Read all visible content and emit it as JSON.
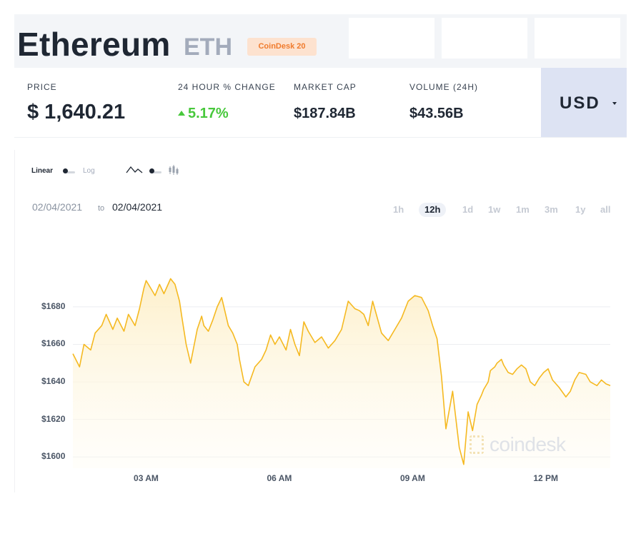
{
  "asset": {
    "name": "Ethereum",
    "symbol": "ETH",
    "badge": "CoinDesk 20"
  },
  "stats": {
    "price": {
      "label": "PRICE",
      "value": "$ 1,640.21"
    },
    "change": {
      "label": "24 HOUR % CHANGE",
      "value": "5.17%",
      "direction": "up"
    },
    "market_cap": {
      "label": "MARKET CAP",
      "value": "$187.84B"
    },
    "volume": {
      "label": "VOLUME (24H)",
      "value": "$43.56B"
    }
  },
  "currency": {
    "selected": "USD"
  },
  "chart_controls": {
    "scale_options": [
      "Linear",
      "Log"
    ],
    "scale_selected": "Linear",
    "chart_type_icons": [
      "line-chart-icon",
      "candlestick-icon"
    ],
    "chart_type_selected": "line",
    "date_from": "02/04/2021",
    "date_to_word": "to",
    "date_to": "02/04/2021",
    "ranges": [
      "1h",
      "12h",
      "1d",
      "1w",
      "1m",
      "3m",
      "1y",
      "all"
    ],
    "range_selected": "12h"
  },
  "watermark": "coindesk",
  "colors": {
    "line": "#f5b921",
    "positive": "#48c83c",
    "badge_text": "#f07b2d",
    "badge_bg": "#fde2cf",
    "currency_bg": "#dde3f3"
  },
  "chart_data": {
    "type": "area",
    "title": "",
    "xlabel": "",
    "ylabel": "",
    "ylim": [
      1594,
      1718
    ],
    "yticks": [
      1600,
      1620,
      1640,
      1660,
      1680
    ],
    "ytick_labels": [
      "$1600",
      "$1620",
      "$1640",
      "$1660",
      "$1680"
    ],
    "xticks": [
      3,
      6,
      9,
      12
    ],
    "xtick_labels": [
      "03 AM",
      "06 AM",
      "09 AM",
      "12 PM"
    ],
    "xlim": [
      1.35,
      13.45
    ],
    "grid": true,
    "series": [
      {
        "x": [
          1.35,
          1.5,
          1.6,
          1.75,
          1.85,
          2.0,
          2.1,
          2.25,
          2.35,
          2.5,
          2.6,
          2.75,
          2.85,
          2.95,
          3.0,
          3.1,
          3.2,
          3.3,
          3.4,
          3.55,
          3.65,
          3.75,
          3.8,
          3.9,
          4.0,
          4.05,
          4.15,
          4.25,
          4.3,
          4.4,
          4.5,
          4.6,
          4.7,
          4.85,
          4.95,
          5.05,
          5.1,
          5.2,
          5.3,
          5.45,
          5.6,
          5.7,
          5.8,
          5.9,
          6.0,
          6.15,
          6.25,
          6.35,
          6.45,
          6.55,
          6.65,
          6.8,
          6.95,
          7.1,
          7.25,
          7.4,
          7.55,
          7.7,
          7.8,
          7.9,
          8.0,
          8.1,
          8.3,
          8.45,
          8.6,
          8.75,
          8.9,
          9.05,
          9.2,
          9.35,
          9.45,
          9.55,
          9.65,
          9.75,
          9.9,
          10.05,
          10.15,
          10.25,
          10.35,
          10.45,
          10.55,
          10.6,
          10.7,
          10.75,
          10.85,
          10.9,
          11.0,
          11.05,
          11.15,
          11.25,
          11.35,
          11.45,
          11.55,
          11.65,
          11.75,
          11.85,
          11.95,
          12.05,
          12.15,
          12.3,
          12.45,
          12.55,
          12.65,
          12.75,
          12.9,
          13.0,
          13.15,
          13.25,
          13.35,
          13.45
        ],
        "values": [
          1655,
          1648,
          1660,
          1657,
          1666,
          1670,
          1676,
          1668,
          1674,
          1667,
          1676,
          1670,
          1679,
          1690,
          1694,
          1690,
          1686,
          1692,
          1687,
          1695,
          1692,
          1683,
          1675,
          1660,
          1650,
          1656,
          1668,
          1675,
          1670,
          1667,
          1673,
          1680,
          1685,
          1670,
          1666,
          1660,
          1652,
          1640,
          1638,
          1648,
          1652,
          1657,
          1665,
          1660,
          1664,
          1657,
          1668,
          1660,
          1654,
          1672,
          1667,
          1661,
          1664,
          1658,
          1662,
          1668,
          1683,
          1679,
          1678,
          1676,
          1670,
          1683,
          1666,
          1662,
          1668,
          1674,
          1683,
          1686,
          1685,
          1678,
          1670,
          1663,
          1643,
          1615,
          1635,
          1605,
          1596,
          1624,
          1614,
          1628,
          1633,
          1636,
          1640,
          1646,
          1648,
          1650,
          1652,
          1649,
          1645,
          1644,
          1647,
          1649,
          1647,
          1640,
          1638,
          1642,
          1645,
          1647,
          1641,
          1637,
          1632,
          1635,
          1641,
          1645,
          1644,
          1640,
          1638,
          1641,
          1639,
          1638
        ]
      }
    ]
  }
}
